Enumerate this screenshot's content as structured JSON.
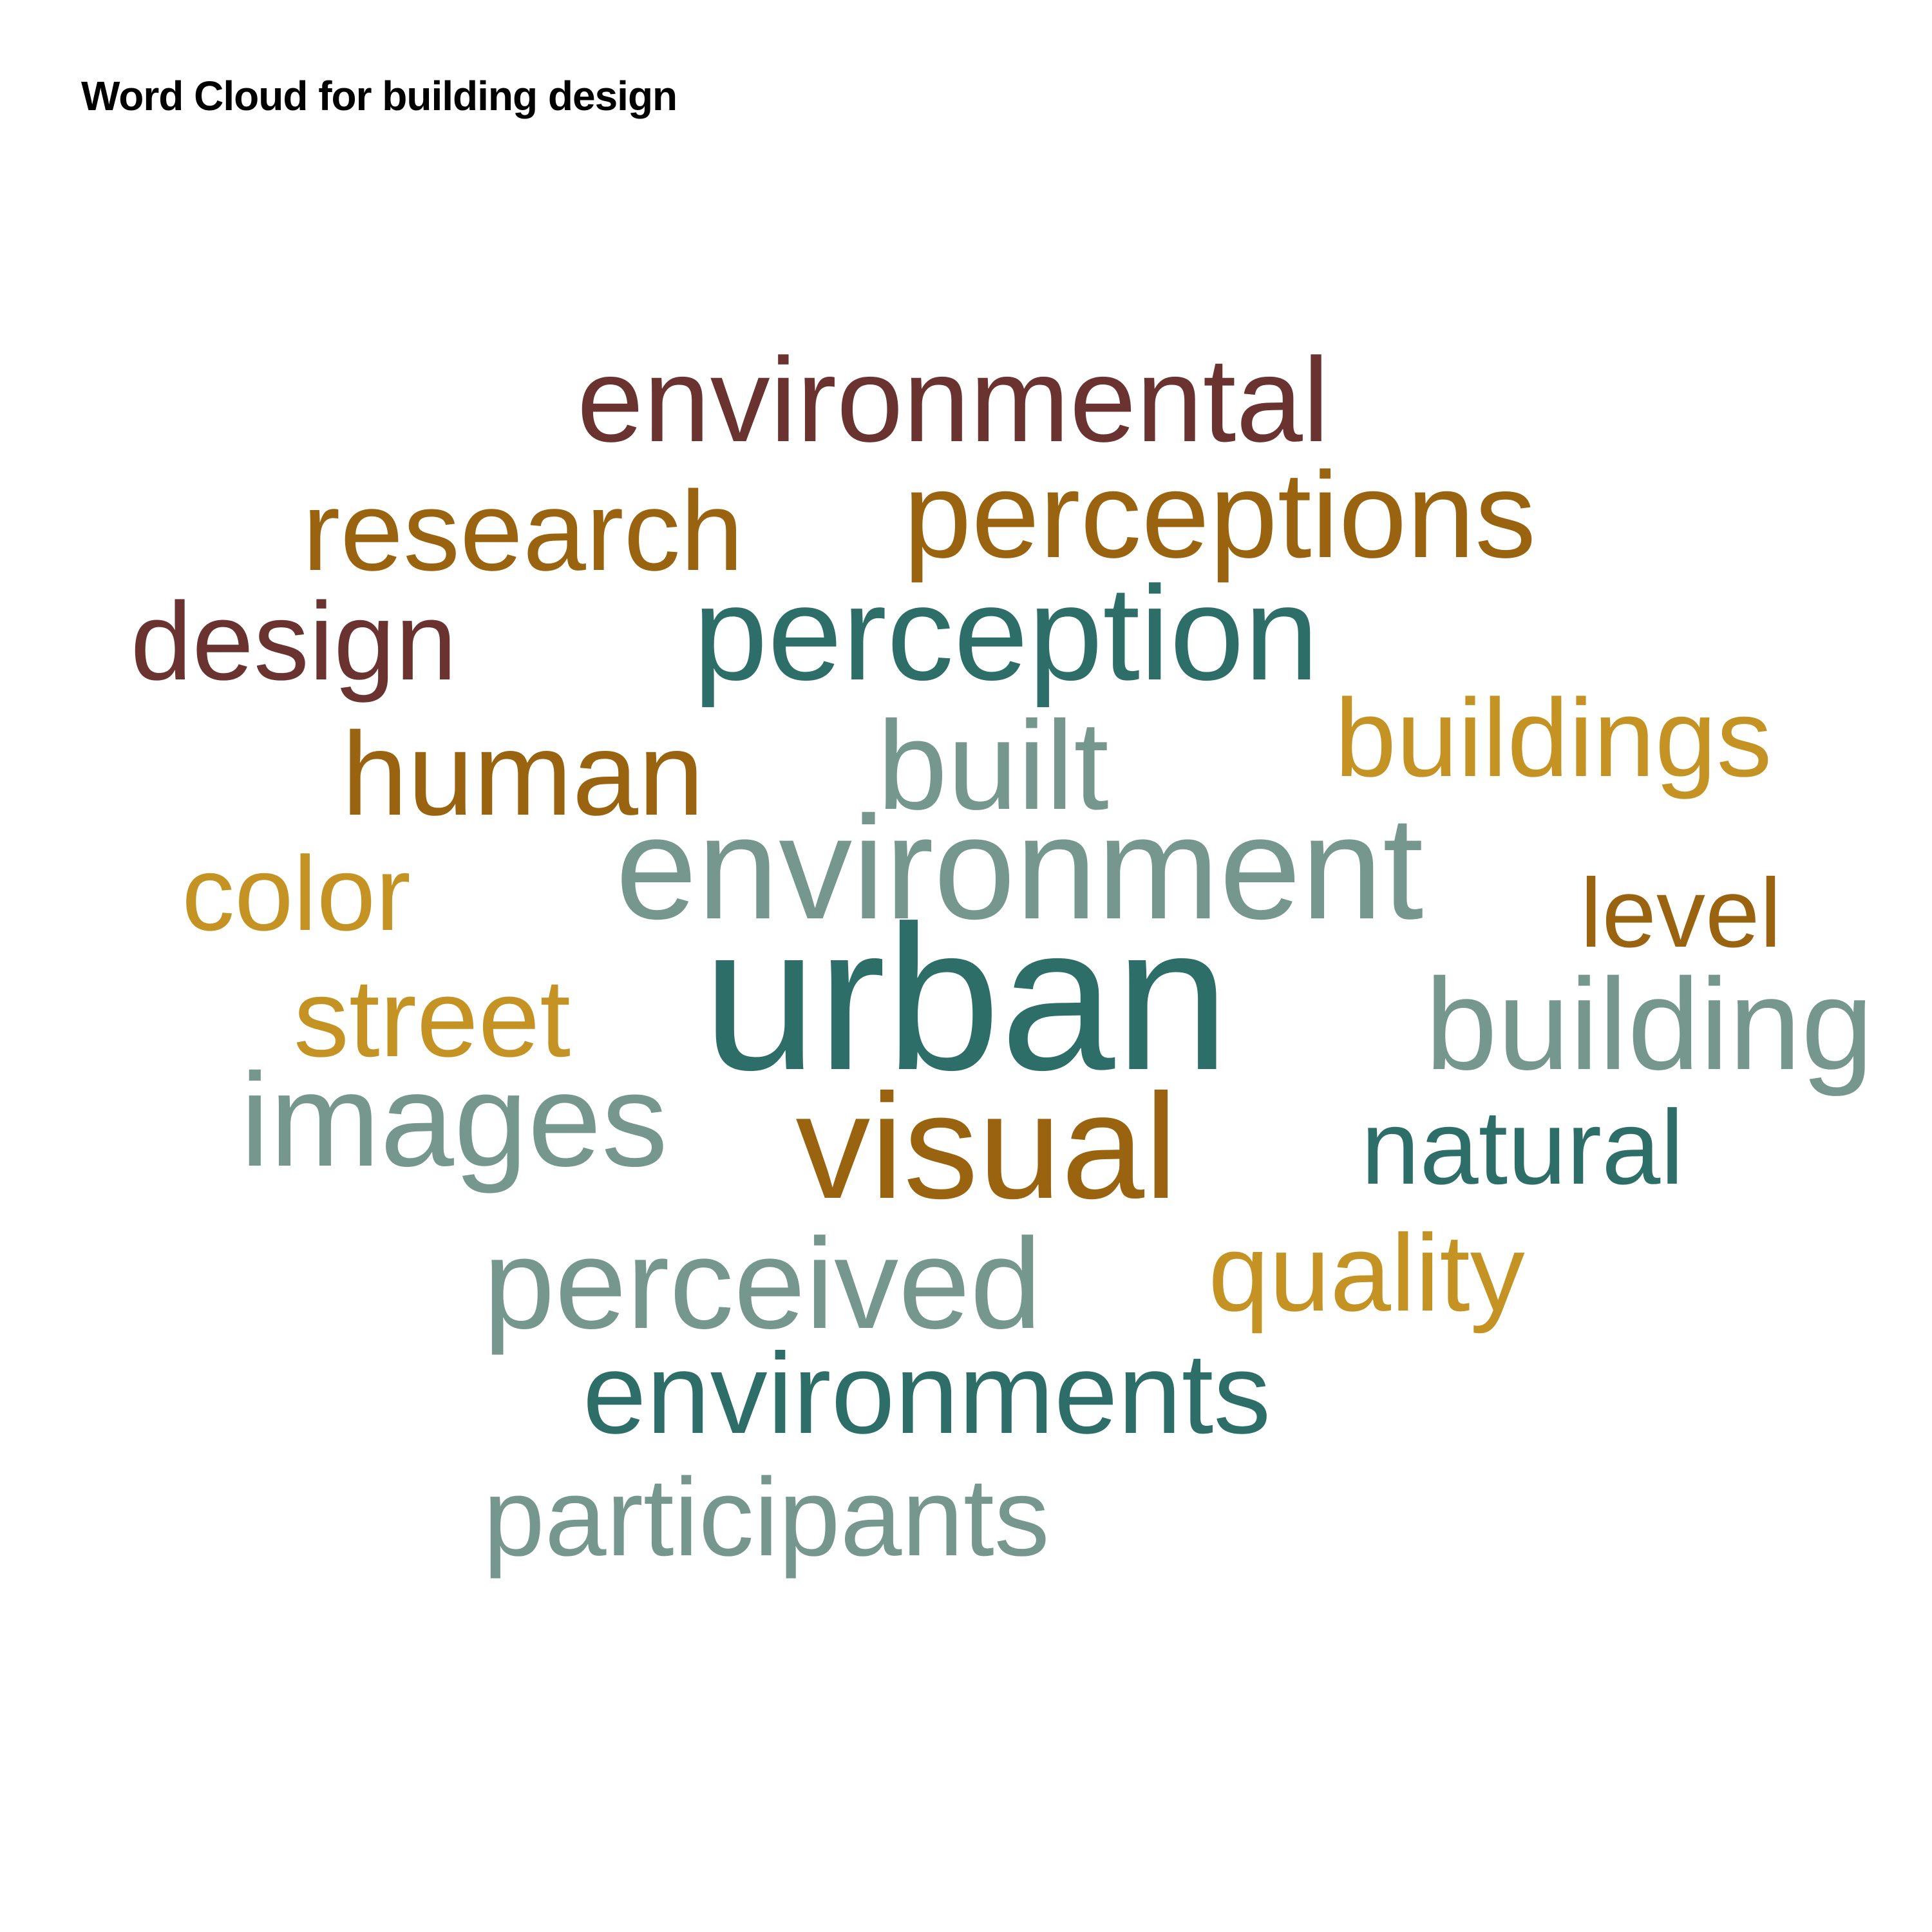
{
  "title": "Word Cloud for building design",
  "chart_data": {
    "type": "wordcloud",
    "title": "Word Cloud for building design",
    "palette": {
      "maroon": "#6b3330",
      "brown": "#9a630f",
      "teal": "#2e6e69",
      "sage": "#76978d",
      "gold": "#c49324"
    },
    "words": [
      {
        "text": "urban",
        "color": "#2e6e69"
      },
      {
        "text": "environment",
        "color": "#76978d"
      },
      {
        "text": "visual",
        "color": "#9a630f"
      },
      {
        "text": "perception",
        "color": "#2e6e69"
      },
      {
        "text": "perceptions",
        "color": "#9a630f"
      },
      {
        "text": "environmental",
        "color": "#6b3330"
      },
      {
        "text": "building",
        "color": "#76978d"
      },
      {
        "text": "images",
        "color": "#76978d"
      },
      {
        "text": "built",
        "color": "#76978d"
      },
      {
        "text": "perceived",
        "color": "#76978d"
      },
      {
        "text": "research",
        "color": "#9a630f"
      },
      {
        "text": "environments",
        "color": "#2e6e69"
      },
      {
        "text": "buildings",
        "color": "#c49324"
      },
      {
        "text": "human",
        "color": "#9a630f"
      },
      {
        "text": "design",
        "color": "#6b3330"
      },
      {
        "text": "street",
        "color": "#c49324"
      },
      {
        "text": "participants",
        "color": "#76978d"
      },
      {
        "text": "quality",
        "color": "#c49324"
      },
      {
        "text": "natural",
        "color": "#2e6e69"
      },
      {
        "text": "color",
        "color": "#c49324"
      },
      {
        "text": "level",
        "color": "#9a630f"
      }
    ]
  }
}
